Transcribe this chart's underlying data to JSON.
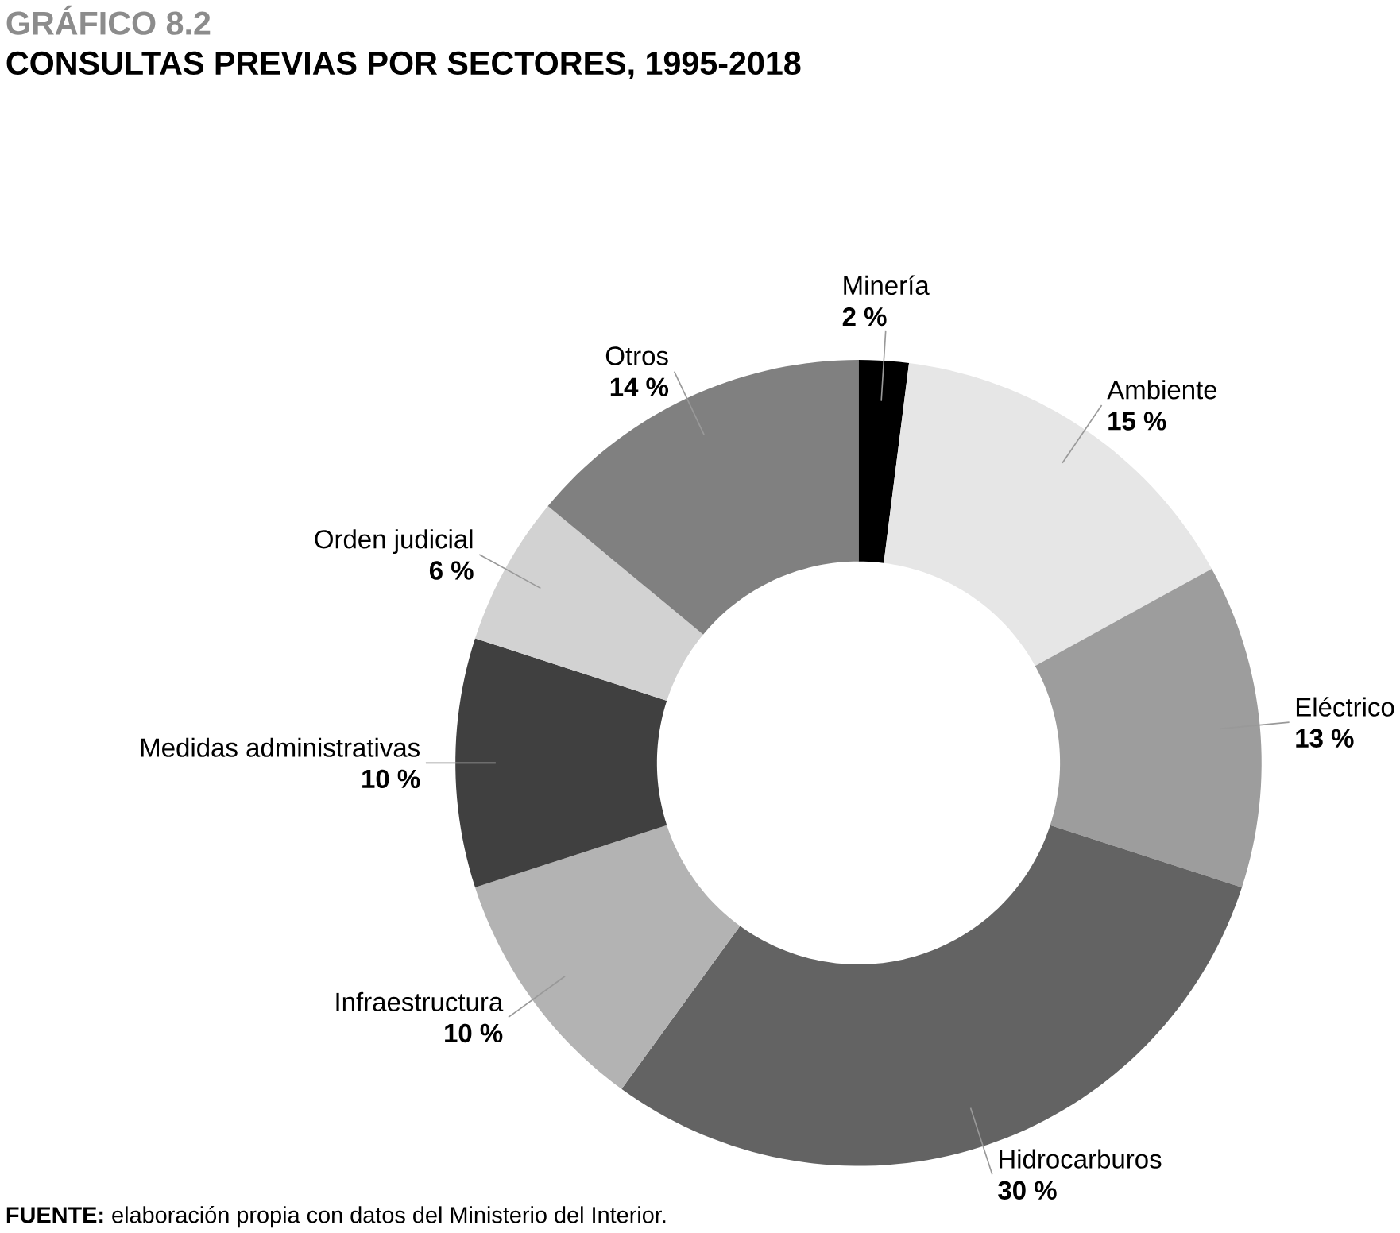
{
  "chart_data": {
    "type": "donut",
    "title": "GRÁFICO 8.2",
    "subtitle": "CONSULTAS PREVIAS POR SECTORES, 1995-2018",
    "categories": [
      "Minería",
      "Ambiente",
      "Eléctrico",
      "Hidrocarburos",
      "Infraestructura",
      "Medidas administrativas",
      "Orden judicial",
      "Otros"
    ],
    "values": [
      2,
      15,
      13,
      30,
      10,
      10,
      6,
      14
    ],
    "value_labels": [
      "2 %",
      "15 %",
      "13 %",
      "30 %",
      "10 %",
      "10 %",
      "6 %",
      "14 %"
    ],
    "colors": [
      "#000000",
      "#e6e6e6",
      "#9d9d9d",
      "#636363",
      "#b3b3b3",
      "#404040",
      "#d2d2d2",
      "#808080"
    ],
    "annotations": [
      "**FUENTE:** elaboración propia con datos del Ministerio del Interior."
    ]
  }
}
